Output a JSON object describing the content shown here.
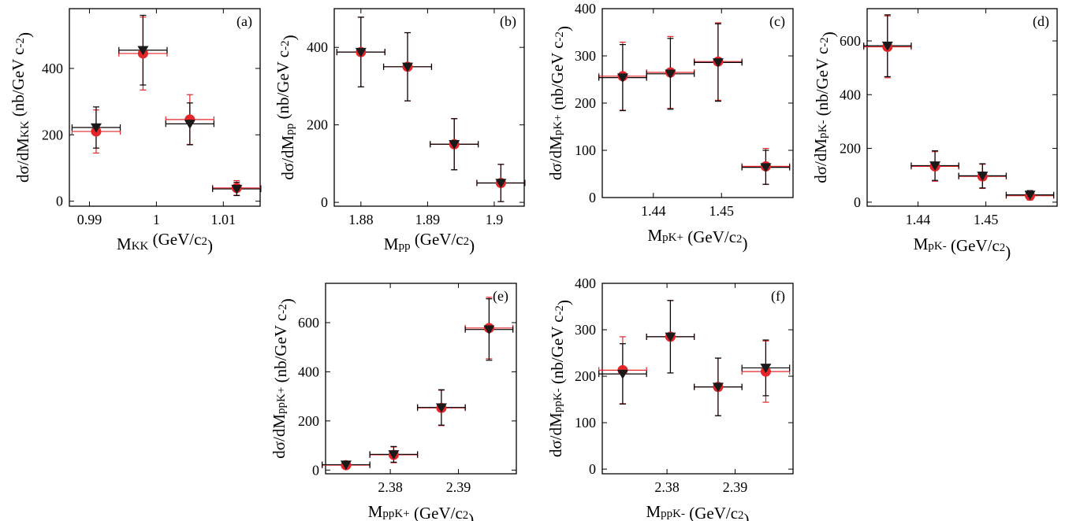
{
  "colors": {
    "frame": "#000000",
    "triangle_series": "#1a1a1a",
    "circle_series": "#e3262a",
    "circle_errorbar": "#e3262a",
    "triangle_errorbar": "#000000"
  },
  "marker_shapes": {
    "red": "circle",
    "black": "downward-triangle"
  },
  "chart_data": [
    {
      "id": "a",
      "type": "scatter",
      "panel_label": "(a)",
      "xlabel": "M_{KK} (GeV/c^{2})",
      "ylabel": "dσ/dM_{KK} (nb/GeV c^{-2})",
      "xlim": [
        0.987,
        1.0155
      ],
      "ylim": [
        -15,
        580
      ],
      "xticks": [
        0.99,
        1.0,
        1.01
      ],
      "xticklabels": [
        "0.99",
        "1",
        "1.01"
      ],
      "yticks": [
        0,
        200,
        400
      ],
      "yticklabels": [
        "0",
        "200",
        "400"
      ],
      "series": [
        {
          "marker": "circle",
          "color": "#e3262a",
          "points": [
            {
              "x": 0.991,
              "y": 210,
              "xerr": 0.0036,
              "yerr_low": 65,
              "yerr_high": 65
            },
            {
              "x": 0.998,
              "y": 445,
              "xerr": 0.0036,
              "yerr_low": 110,
              "yerr_high": 110
            },
            {
              "x": 1.005,
              "y": 246,
              "xerr": 0.0036,
              "yerr_low": 75,
              "yerr_high": 75
            },
            {
              "x": 1.012,
              "y": 40,
              "xerr": 0.0036,
              "yerr_low": 22,
              "yerr_high": 22
            }
          ]
        },
        {
          "marker": "triangle",
          "color": "#000000",
          "points": [
            {
              "x": 0.991,
              "y": 222,
              "xerr": 0.0036,
              "yerr_low": 62,
              "yerr_high": 62
            },
            {
              "x": 0.998,
              "y": 455,
              "xerr": 0.0036,
              "yerr_low": 105,
              "yerr_high": 105
            },
            {
              "x": 1.005,
              "y": 233,
              "xerr": 0.0036,
              "yerr_low": 63,
              "yerr_high": 63
            },
            {
              "x": 1.012,
              "y": 37,
              "xerr": 0.0036,
              "yerr_low": 20,
              "yerr_high": 20
            }
          ]
        }
      ]
    },
    {
      "id": "b",
      "type": "scatter",
      "panel_label": "(b)",
      "xlabel": "M_{pp} (GeV/c^{2})",
      "ylabel": "dσ/dM_{pp} (nb/GeV c^{-2})",
      "xlim": [
        1.876,
        1.9045
      ],
      "ylim": [
        -10,
        500
      ],
      "xticks": [
        1.88,
        1.89,
        1.9
      ],
      "xticklabels": [
        "1.88",
        "1.89",
        "1.9"
      ],
      "yticks": [
        0,
        200,
        400
      ],
      "yticklabels": [
        "0",
        "200",
        "400"
      ],
      "series": [
        {
          "marker": "circle",
          "color": "#e3262a",
          "points": [
            {
              "x": 1.88,
              "y": 388,
              "xerr": 0.0036,
              "yerr_low": 90,
              "yerr_high": 90
            },
            {
              "x": 1.887,
              "y": 350,
              "xerr": 0.0036,
              "yerr_low": 88,
              "yerr_high": 88
            },
            {
              "x": 1.894,
              "y": 150,
              "xerr": 0.0036,
              "yerr_low": 66,
              "yerr_high": 66
            },
            {
              "x": 1.901,
              "y": 50,
              "xerr": 0.0036,
              "yerr_low": 48,
              "yerr_high": 48
            }
          ]
        },
        {
          "marker": "triangle",
          "color": "#000000",
          "points": [
            {
              "x": 1.88,
              "y": 388,
              "xerr": 0.0036,
              "yerr_low": 90,
              "yerr_high": 90
            },
            {
              "x": 1.887,
              "y": 350,
              "xerr": 0.0036,
              "yerr_low": 88,
              "yerr_high": 88
            },
            {
              "x": 1.894,
              "y": 150,
              "xerr": 0.0036,
              "yerr_low": 66,
              "yerr_high": 66
            },
            {
              "x": 1.901,
              "y": 50,
              "xerr": 0.0036,
              "yerr_low": 48,
              "yerr_high": 48
            }
          ]
        }
      ]
    },
    {
      "id": "c",
      "type": "scatter",
      "panel_label": "(c)",
      "xlabel": "M_{pK^{+}} (GeV/c^{2})",
      "ylabel": "dσ/dM_{pK^{+}} (nb/GeV c^{-2})",
      "xlim": [
        1.4325,
        1.4605
      ],
      "ylim": [
        0,
        400
      ],
      "xticks": [
        1.44,
        1.45
      ],
      "xticklabels": [
        "1.44",
        "1.45"
      ],
      "yticks": [
        0,
        100,
        200,
        300,
        400
      ],
      "yticklabels": [
        "0",
        "100",
        "200",
        "300",
        "400"
      ],
      "series": [
        {
          "marker": "circle",
          "color": "#e3262a",
          "points": [
            {
              "x": 1.4355,
              "y": 257,
              "xerr": 0.0035,
              "yerr_low": 72,
              "yerr_high": 72
            },
            {
              "x": 1.4425,
              "y": 265,
              "xerr": 0.0035,
              "yerr_low": 76,
              "yerr_high": 76
            },
            {
              "x": 1.4495,
              "y": 288,
              "xerr": 0.0035,
              "yerr_low": 82,
              "yerr_high": 82
            },
            {
              "x": 1.4565,
              "y": 66,
              "xerr": 0.0035,
              "yerr_low": 38,
              "yerr_high": 38
            }
          ]
        },
        {
          "marker": "triangle",
          "color": "#000000",
          "points": [
            {
              "x": 1.4355,
              "y": 254,
              "xerr": 0.0035,
              "yerr_low": 70,
              "yerr_high": 70
            },
            {
              "x": 1.4425,
              "y": 262,
              "xerr": 0.0035,
              "yerr_low": 75,
              "yerr_high": 75
            },
            {
              "x": 1.4495,
              "y": 286,
              "xerr": 0.0035,
              "yerr_low": 82,
              "yerr_high": 82
            },
            {
              "x": 1.4565,
              "y": 64,
              "xerr": 0.0035,
              "yerr_low": 36,
              "yerr_high": 36
            }
          ]
        }
      ]
    },
    {
      "id": "d",
      "type": "scatter",
      "panel_label": "(d)",
      "xlabel": "M_{pK^{-}} (GeV/c^{2})",
      "ylabel": "dσ/dM_{pK^{-}} (nb/GeV c^{-2})",
      "xlim": [
        1.4325,
        1.4605
      ],
      "ylim": [
        -15,
        720
      ],
      "xticks": [
        1.44,
        1.45
      ],
      "xticklabels": [
        "1.44",
        "1.45"
      ],
      "yticks": [
        0,
        200,
        400,
        600
      ],
      "yticklabels": [
        "0",
        "200",
        "400",
        "600"
      ],
      "series": [
        {
          "marker": "circle",
          "color": "#e3262a",
          "points": [
            {
              "x": 1.4355,
              "y": 578,
              "xerr": 0.0035,
              "yerr_low": 115,
              "yerr_high": 115
            },
            {
              "x": 1.4425,
              "y": 133,
              "xerr": 0.0035,
              "yerr_low": 55,
              "yerr_high": 55
            },
            {
              "x": 1.4495,
              "y": 96,
              "xerr": 0.0035,
              "yerr_low": 45,
              "yerr_high": 45
            },
            {
              "x": 1.4565,
              "y": 24,
              "xerr": 0.0035,
              "yerr_low": 16,
              "yerr_high": 16
            }
          ]
        },
        {
          "marker": "triangle",
          "color": "#000000",
          "points": [
            {
              "x": 1.4355,
              "y": 582,
              "xerr": 0.0035,
              "yerr_low": 115,
              "yerr_high": 115
            },
            {
              "x": 1.4425,
              "y": 136,
              "xerr": 0.0035,
              "yerr_low": 55,
              "yerr_high": 55
            },
            {
              "x": 1.4495,
              "y": 98,
              "xerr": 0.0035,
              "yerr_low": 45,
              "yerr_high": 45
            },
            {
              "x": 1.4565,
              "y": 27,
              "xerr": 0.0035,
              "yerr_low": 16,
              "yerr_high": 16
            }
          ]
        }
      ]
    },
    {
      "id": "e",
      "type": "scatter",
      "panel_label": "(e)",
      "xlabel": "M_{ppK^{+}} (GeV/c^{2})",
      "ylabel": "dσ/dM_{ppK^{+}} (nb/GeV c^{-2})",
      "xlim": [
        2.3705,
        2.3985
      ],
      "ylim": [
        -15,
        760
      ],
      "xticks": [
        2.38,
        2.39
      ],
      "xticklabels": [
        "2.38",
        "2.39"
      ],
      "yticks": [
        0,
        200,
        400,
        600
      ],
      "yticklabels": [
        "0",
        "200",
        "400",
        "600"
      ],
      "series": [
        {
          "marker": "circle",
          "color": "#e3262a",
          "points": [
            {
              "x": 2.3735,
              "y": 20,
              "xerr": 0.0035,
              "yerr_low": 14,
              "yerr_high": 14
            },
            {
              "x": 2.3805,
              "y": 62,
              "xerr": 0.0035,
              "yerr_low": 32,
              "yerr_high": 32
            },
            {
              "x": 2.3875,
              "y": 253,
              "xerr": 0.0035,
              "yerr_low": 72,
              "yerr_high": 72
            },
            {
              "x": 2.3945,
              "y": 578,
              "xerr": 0.0035,
              "yerr_low": 125,
              "yerr_high": 125
            }
          ]
        },
        {
          "marker": "triangle",
          "color": "#000000",
          "points": [
            {
              "x": 2.3735,
              "y": 22,
              "xerr": 0.0035,
              "yerr_low": 14,
              "yerr_high": 14
            },
            {
              "x": 2.3805,
              "y": 64,
              "xerr": 0.0035,
              "yerr_low": 32,
              "yerr_high": 32
            },
            {
              "x": 2.3875,
              "y": 255,
              "xerr": 0.0035,
              "yerr_low": 72,
              "yerr_high": 72
            },
            {
              "x": 2.3945,
              "y": 572,
              "xerr": 0.0035,
              "yerr_low": 125,
              "yerr_high": 125
            }
          ]
        }
      ]
    },
    {
      "id": "f",
      "type": "scatter",
      "panel_label": "(f)",
      "xlabel": "M_{ppK^{-}} (GeV/c^{2})",
      "ylabel": "dσ/dM_{ppK^{-}} (nb/GeV c^{-2})",
      "xlim": [
        2.3705,
        2.3985
      ],
      "ylim": [
        -10,
        400
      ],
      "xticks": [
        2.38,
        2.39
      ],
      "xticklabels": [
        "2.38",
        "2.39"
      ],
      "yticks": [
        0,
        100,
        200,
        300,
        400
      ],
      "yticklabels": [
        "0",
        "100",
        "200",
        "300",
        "400"
      ],
      "series": [
        {
          "marker": "circle",
          "color": "#e3262a",
          "points": [
            {
              "x": 2.3735,
              "y": 213,
              "xerr": 0.0035,
              "yerr_low": 72,
              "yerr_high": 72
            },
            {
              "x": 2.3805,
              "y": 285,
              "xerr": 0.0035,
              "yerr_low": 78,
              "yerr_high": 78
            },
            {
              "x": 2.3875,
              "y": 177,
              "xerr": 0.0035,
              "yerr_low": 62,
              "yerr_high": 62
            },
            {
              "x": 2.3945,
              "y": 210,
              "xerr": 0.0035,
              "yerr_low": 66,
              "yerr_high": 66
            }
          ]
        },
        {
          "marker": "triangle",
          "color": "#000000",
          "points": [
            {
              "x": 2.3735,
              "y": 205,
              "xerr": 0.0035,
              "yerr_low": 65,
              "yerr_high": 65
            },
            {
              "x": 2.3805,
              "y": 285,
              "xerr": 0.0035,
              "yerr_low": 78,
              "yerr_high": 78
            },
            {
              "x": 2.3875,
              "y": 177,
              "xerr": 0.0035,
              "yerr_low": 62,
              "yerr_high": 62
            },
            {
              "x": 2.3945,
              "y": 218,
              "xerr": 0.0035,
              "yerr_low": 60,
              "yerr_high": 60
            }
          ]
        }
      ]
    }
  ]
}
